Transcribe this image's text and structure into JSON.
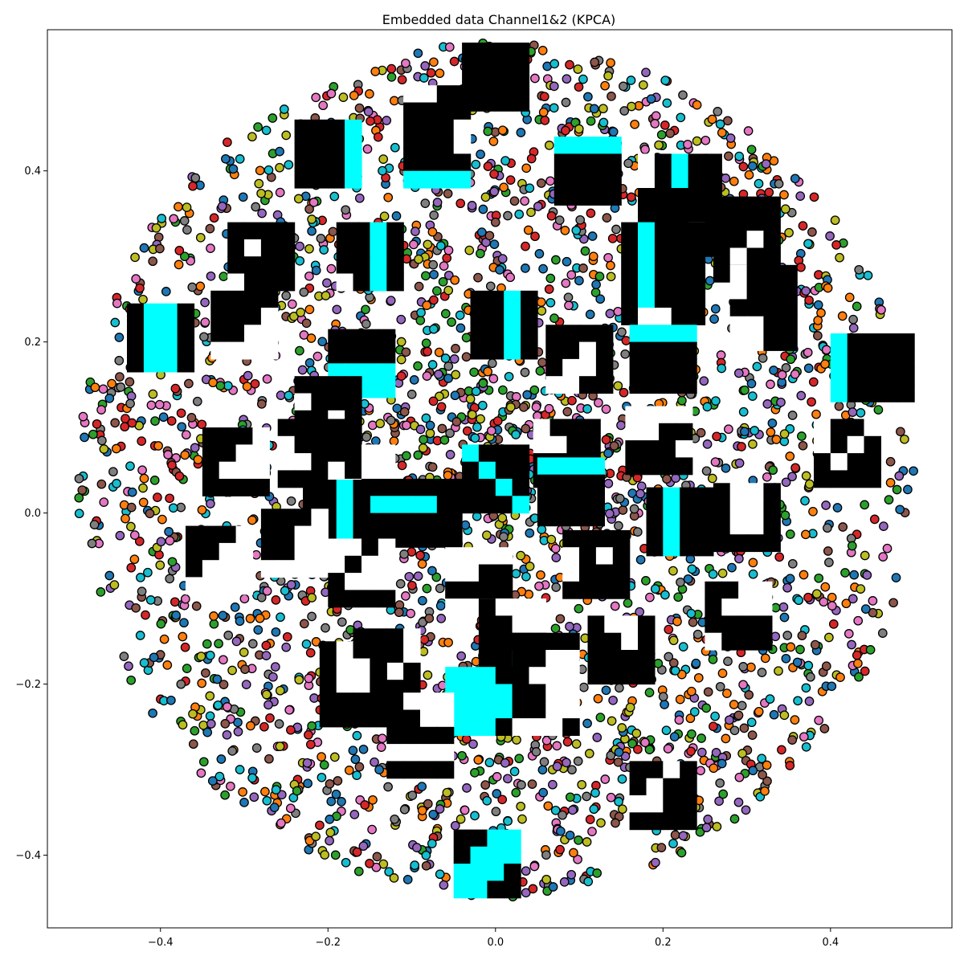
{
  "chart_data": {
    "type": "scatter",
    "title": "Embedded data Channel1&2 (KPCA)",
    "xlabel": "",
    "ylabel": "",
    "xlim": [
      -0.535,
      0.545
    ],
    "ylim": [
      -0.485,
      0.565
    ],
    "x_ticks": [
      -0.4,
      -0.2,
      0.0,
      0.2,
      0.4
    ],
    "x_tick_labels": [
      "−0.4",
      "−0.2",
      "0.0",
      "0.2",
      "0.4"
    ],
    "y_ticks": [
      -0.4,
      -0.2,
      0.0,
      0.2,
      0.4
    ],
    "y_tick_labels": [
      "−0.4",
      "−0.2",
      "0.0",
      "0.2",
      "0.4"
    ],
    "grid": false,
    "legend": "none",
    "marker_colors": [
      "#1f77b4",
      "#ff7f0e",
      "#2ca02c",
      "#d62728",
      "#9467bd",
      "#8c564b",
      "#e377c2",
      "#7f7f7f",
      "#bcbd22",
      "#17becf"
    ],
    "marker_edge_color": "#000000",
    "point_distribution": {
      "shape": "disk",
      "center": [
        0.0,
        0.05
      ],
      "radius": 0.5,
      "count": 3400,
      "seed": 7
    },
    "image_palette": {
      "0": "#000000",
      "1": "#ffffff",
      "2": "#00ffff"
    },
    "image_thumbnails": [
      {
        "x": 0.0,
        "y": 0.51,
        "w": 0.08,
        "h": 0.08,
        "grid": [
          "0000",
          "0000",
          "0000",
          "0000"
        ]
      },
      {
        "x": -0.07,
        "y": 0.44,
        "w": 0.08,
        "h": 0.12,
        "grid": [
          "1100",
          "0000",
          "0001",
          "0001",
          "0000",
          "2222"
        ]
      },
      {
        "x": -0.2,
        "y": 0.42,
        "w": 0.08,
        "h": 0.08,
        "grid": [
          "0002",
          "0002",
          "0002",
          "0002"
        ]
      },
      {
        "x": 0.11,
        "y": 0.4,
        "w": 0.08,
        "h": 0.08,
        "grid": [
          "2222",
          "0000",
          "0000",
          "0000"
        ]
      },
      {
        "x": 0.22,
        "y": 0.36,
        "w": 0.1,
        "h": 0.12,
        "grid": [
          "10200",
          "10200",
          "00000",
          "00000",
          "00010",
          "01110"
        ]
      },
      {
        "x": 0.3,
        "y": 0.32,
        "w": 0.08,
        "h": 0.1,
        "grid": [
          "0000",
          "0000",
          "0010",
          "0100",
          "0000"
        ]
      },
      {
        "x": -0.28,
        "y": 0.3,
        "w": 0.08,
        "h": 0.08,
        "grid": [
          "0000",
          "0100",
          "0000",
          "1000"
        ]
      },
      {
        "x": -0.15,
        "y": 0.3,
        "w": 0.08,
        "h": 0.08,
        "grid": [
          "0020",
          "0020",
          "0020",
          "1020"
        ]
      },
      {
        "x": 0.2,
        "y": 0.28,
        "w": 0.1,
        "h": 0.12,
        "grid": [
          "02000",
          "02000",
          "02000",
          "02000",
          "02000",
          "01100"
        ]
      },
      {
        "x": 0.32,
        "y": 0.24,
        "w": 0.08,
        "h": 0.1,
        "grid": [
          "1000",
          "1000",
          "0000",
          "1100",
          "1100"
        ]
      },
      {
        "x": -0.4,
        "y": 0.205,
        "w": 0.08,
        "h": 0.08,
        "grid": [
          "0220",
          "0220",
          "0220",
          "0220"
        ]
      },
      {
        "x": -0.3,
        "y": 0.22,
        "w": 0.08,
        "h": 0.08,
        "grid": [
          "0000",
          "0001",
          "0011",
          "1111"
        ]
      },
      {
        "x": 0.01,
        "y": 0.22,
        "w": 0.08,
        "h": 0.08,
        "grid": [
          "0020",
          "0020",
          "0020",
          "0020"
        ]
      },
      {
        "x": 0.1,
        "y": 0.18,
        "w": 0.08,
        "h": 0.08,
        "grid": [
          "0000",
          "0010",
          "0110",
          "1100"
        ]
      },
      {
        "x": 0.2,
        "y": 0.18,
        "w": 0.08,
        "h": 0.08,
        "grid": [
          "2222",
          "0000",
          "0000",
          "0000"
        ]
      },
      {
        "x": 0.45,
        "y": 0.17,
        "w": 0.1,
        "h": 0.08,
        "grid": [
          "20000",
          "20000",
          "20000",
          "20000"
        ]
      },
      {
        "x": -0.16,
        "y": 0.175,
        "w": 0.08,
        "h": 0.08,
        "grid": [
          "0000",
          "0000",
          "2222",
          "2222"
        ]
      },
      {
        "x": -0.2,
        "y": 0.12,
        "w": 0.08,
        "h": 0.08,
        "grid": [
          "0000",
          "1000",
          "0010",
          "1110"
        ]
      },
      {
        "x": -0.22,
        "y": 0.07,
        "w": 0.08,
        "h": 0.08,
        "grid": [
          "0000",
          "1000",
          "1100",
          "0000"
        ]
      },
      {
        "x": -0.31,
        "y": 0.06,
        "w": 0.08,
        "h": 0.08,
        "grid": [
          "0001",
          "0011",
          "0111",
          "0000"
        ]
      },
      {
        "x": -0.16,
        "y": 0.04,
        "w": 0.08,
        "h": 0.08,
        "grid": [
          "0011",
          "1011",
          "1100",
          "0000"
        ]
      },
      {
        "x": 0.085,
        "y": 0.07,
        "w": 0.08,
        "h": 0.08,
        "grid": [
          "1000",
          "1100",
          "0000",
          "0000"
        ]
      },
      {
        "x": 0.195,
        "y": 0.085,
        "w": 0.08,
        "h": 0.08,
        "grid": [
          "1111",
          "1100",
          "0001",
          "0000"
        ]
      },
      {
        "x": 0.42,
        "y": 0.07,
        "w": 0.08,
        "h": 0.08,
        "grid": [
          "1001",
          "1010",
          "0100",
          "0000"
        ]
      },
      {
        "x": -0.1,
        "y": 0.0,
        "w": 0.12,
        "h": 0.08,
        "grid": [
          "0000",
          "2220",
          "0000",
          "0000"
        ]
      },
      {
        "x": 0.0,
        "y": 0.04,
        "w": 0.08,
        "h": 0.08,
        "grid": [
          "2000",
          "0200",
          "0020",
          "0002"
        ]
      },
      {
        "x": -0.19,
        "y": -0.001,
        "w": 0.08,
        "h": 0.08,
        "grid": [
          "0020",
          "0020",
          "0020",
          "0020"
        ]
      },
      {
        "x": 0.09,
        "y": 0.025,
        "w": 0.08,
        "h": 0.08,
        "grid": [
          "2222",
          "0000",
          "0000",
          "0000"
        ]
      },
      {
        "x": 0.22,
        "y": -0.01,
        "w": 0.08,
        "h": 0.08,
        "grid": [
          "0200",
          "0200",
          "0200",
          "0200"
        ]
      },
      {
        "x": 0.3,
        "y": -0.005,
        "w": 0.08,
        "h": 0.08,
        "grid": [
          "0110",
          "0110",
          "0110",
          "0000"
        ]
      },
      {
        "x": -0.33,
        "y": -0.055,
        "w": 0.08,
        "h": 0.08,
        "grid": [
          "0001",
          "0011",
          "0111",
          "1111"
        ]
      },
      {
        "x": -0.24,
        "y": -0.035,
        "w": 0.08,
        "h": 0.08,
        "grid": [
          "0001",
          "0011",
          "0011",
          "1111"
        ]
      },
      {
        "x": -0.02,
        "y": -0.08,
        "w": 0.08,
        "h": 0.08,
        "grid": [
          "1111",
          "1100",
          "0000",
          "1111"
        ]
      },
      {
        "x": -0.16,
        "y": -0.07,
        "w": 0.08,
        "h": 0.08,
        "grid": [
          "1101",
          "1011",
          "0111",
          "0000"
        ]
      },
      {
        "x": 0.12,
        "y": -0.06,
        "w": 0.08,
        "h": 0.08,
        "grid": [
          "0000",
          "1010",
          "1000",
          "0000"
        ]
      },
      {
        "x": 0.29,
        "y": -0.12,
        "w": 0.08,
        "h": 0.08,
        "grid": [
          "0011",
          "0111",
          "0000",
          "1000"
        ]
      },
      {
        "x": 0.15,
        "y": -0.16,
        "w": 0.08,
        "h": 0.08,
        "grid": [
          "0110",
          "0010",
          "0000",
          "0000"
        ]
      },
      {
        "x": 0.02,
        "y": -0.14,
        "w": 0.08,
        "h": 0.08,
        "grid": [
          "0111",
          "0011",
          "0000",
          "0022"
        ]
      },
      {
        "x": -0.13,
        "y": -0.175,
        "w": 0.08,
        "h": 0.08,
        "grid": [
          "0001",
          "1101",
          "0110",
          "1000"
        ]
      },
      {
        "x": -0.02,
        "y": -0.22,
        "w": 0.08,
        "h": 0.08,
        "grid": [
          "2220",
          "2222",
          "2222",
          "2220"
        ]
      },
      {
        "x": 0.06,
        "y": -0.2,
        "w": 0.08,
        "h": 0.12,
        "grid": [
          "0000",
          "0011",
          "0111",
          "0011",
          "0011",
          "1110"
        ]
      },
      {
        "x": -0.17,
        "y": -0.2,
        "w": 0.08,
        "h": 0.1,
        "grid": [
          "0100",
          "0110",
          "0110",
          "0000",
          "0000"
        ]
      },
      {
        "x": -0.09,
        "y": -0.26,
        "w": 0.08,
        "h": 0.1,
        "grid": [
          "0111",
          "0011",
          "0000",
          "1111",
          "0000"
        ]
      },
      {
        "x": 0.2,
        "y": -0.33,
        "w": 0.08,
        "h": 0.08,
        "grid": [
          "0010",
          "0100",
          "1100",
          "0000"
        ]
      },
      {
        "x": -0.01,
        "y": -0.41,
        "w": 0.08,
        "h": 0.08,
        "grid": [
          "0022",
          "0222",
          "2220",
          "2200"
        ]
      }
    ]
  }
}
